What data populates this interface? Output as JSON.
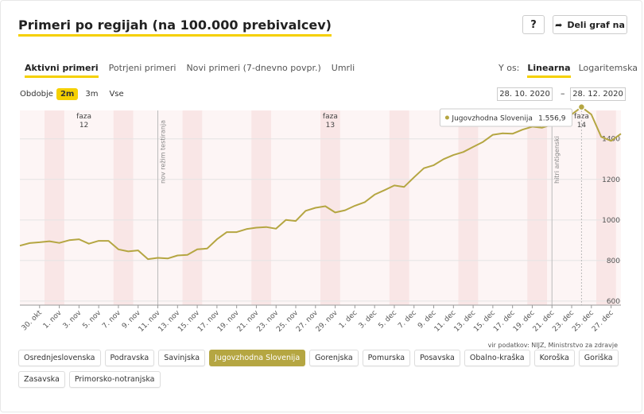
{
  "title": "Primeri po regijah (na 100.000 prebivalcev)",
  "buttons": {
    "help": "?",
    "share": "Deli graf na",
    "help_icon": "question-icon",
    "share_icon": "share-arrow-icon"
  },
  "tabs": [
    "Aktivni primeri",
    "Potrjeni primeri",
    "Novi primeri (7-dnevno povpr.)",
    "Umrli"
  ],
  "active_tab": 0,
  "y_axis": {
    "label": "Y os:",
    "options": [
      "Linearna",
      "Logaritemska"
    ],
    "active": 0
  },
  "period": {
    "label": "Obdobje",
    "options": [
      "2m",
      "3m",
      "Vse"
    ],
    "active": 0
  },
  "date_range": {
    "from": "28. 10. 2020",
    "separator": "–",
    "to": "28. 12. 2020"
  },
  "source": "vir podatkov: NIJZ, Ministrstvo za zdravje",
  "regions": [
    "Osrednjeslovenska",
    "Podravska",
    "Savinjska",
    "Jugovzhodna Slovenija",
    "Gorenjska",
    "Pomurska",
    "Posavska",
    "Obalno-kraška",
    "Koroška",
    "Goriška",
    "Zasavska",
    "Primorsko-notranjska"
  ],
  "active_region": 3,
  "colors": {
    "accent": "#f5d000",
    "series": "#b5a642",
    "band": "#f9e6e6",
    "phase_line": "#bbbbbb"
  },
  "chart_data": {
    "type": "line",
    "title": "",
    "xlabel": "",
    "ylabel": "",
    "ylim": [
      580,
      1540
    ],
    "yticks": [
      600,
      800,
      1000,
      1200,
      1400
    ],
    "x_tick_labels": [
      "30. okt",
      "1. nov",
      "3. nov",
      "5. nov",
      "7. nov",
      "9. nov",
      "11. nov",
      "13. nov",
      "15. nov",
      "17. nov",
      "19. nov",
      "21. nov",
      "23. nov",
      "25. nov",
      "27. nov",
      "29. nov",
      "1. dec",
      "3. dec",
      "5. dec",
      "7. dec",
      "9. dec",
      "11. dec",
      "13. dec",
      "15. dec",
      "17. dec",
      "19. dec",
      "21. dec",
      "23. dec",
      "25. dec",
      "27. dec"
    ],
    "x": [
      "28. 10.",
      "29. 10.",
      "30. 10.",
      "31. 10.",
      "1. 11.",
      "2. 11.",
      "3. 11.",
      "4. 11.",
      "5. 11.",
      "6. 11.",
      "7. 11.",
      "8. 11.",
      "9. 11.",
      "10. 11.",
      "11. 11.",
      "12. 11.",
      "13. 11.",
      "14. 11.",
      "15. 11.",
      "16. 11.",
      "17. 11.",
      "18. 11.",
      "19. 11.",
      "20. 11.",
      "21. 11.",
      "22. 11.",
      "23. 11.",
      "24. 11.",
      "25. 11.",
      "26. 11.",
      "27. 11.",
      "28. 11.",
      "29. 11.",
      "30. 11.",
      "1. 12.",
      "2. 12.",
      "3. 12.",
      "4. 12.",
      "5. 12.",
      "6. 12.",
      "7. 12.",
      "8. 12.",
      "9. 12.",
      "10. 12.",
      "11. 12.",
      "12. 12.",
      "13. 12.",
      "14. 12.",
      "15. 12.",
      "16. 12.",
      "17. 12.",
      "18. 12.",
      "19. 12.",
      "20. 12.",
      "21. 12.",
      "22. 12.",
      "23. 12.",
      "24. 12.",
      "25. 12.",
      "26. 12.",
      "27. 12.",
      "28. 12."
    ],
    "series": [
      {
        "name": "Jugovzhodna Slovenija",
        "values": [
          873,
          886,
          890,
          895,
          887,
          900,
          905,
          883,
          897,
          897,
          855,
          845,
          850,
          807,
          813,
          810,
          825,
          828,
          855,
          859,
          905,
          940,
          940,
          955,
          962,
          965,
          957,
          1000,
          995,
          1045,
          1060,
          1068,
          1037,
          1048,
          1070,
          1088,
          1125,
          1147,
          1170,
          1163,
          1210,
          1255,
          1270,
          1300,
          1320,
          1335,
          1360,
          1385,
          1420,
          1427,
          1425,
          1445,
          1460,
          1455,
          1470,
          1495,
          1520,
          1556.9,
          1520,
          1410,
          1390,
          1425
        ]
      }
    ],
    "tooltip": {
      "series": "Jugovzhodna Slovenija",
      "value": "1.556,9"
    },
    "phases": [
      {
        "label": "faza",
        "number": "12"
      },
      {
        "label": "faza",
        "number": "13"
      },
      {
        "label": "faza",
        "number": "14"
      }
    ],
    "annotations": [
      "nov režim testiranja",
      "hitri antigenski"
    ]
  }
}
